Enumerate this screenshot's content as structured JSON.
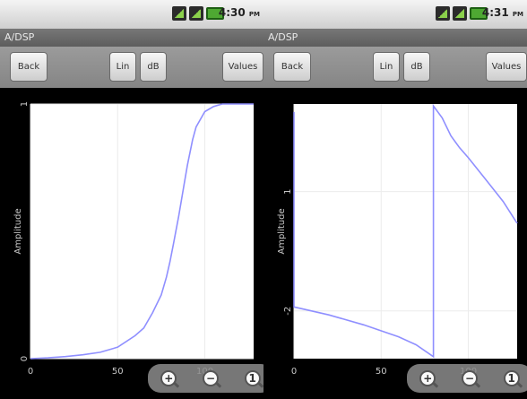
{
  "screens": [
    {
      "status": {
        "time": "4:30",
        "ampm": "PM"
      },
      "title": "A/DSP",
      "toolbar": {
        "back": "Back",
        "lin": "Lin",
        "db": "dB",
        "values": "Values"
      },
      "chart_data": {
        "type": "line",
        "ylabel": "Amplitude",
        "xlim": [
          0,
          128
        ],
        "ylim": [
          0,
          1
        ],
        "x_ticks": [
          "0",
          "50",
          "100"
        ],
        "y_ticks": [
          "0",
          "1"
        ],
        "grid": true,
        "series_color": "#8f8fff",
        "x": [
          0,
          10,
          20,
          30,
          40,
          50,
          60,
          65,
          70,
          75,
          78,
          80,
          82,
          85,
          88,
          90,
          93,
          95,
          100,
          105,
          110,
          115,
          128
        ],
        "values": [
          0.0,
          0.003,
          0.008,
          0.015,
          0.025,
          0.045,
          0.09,
          0.12,
          0.18,
          0.25,
          0.32,
          0.38,
          0.45,
          0.56,
          0.68,
          0.76,
          0.86,
          0.91,
          0.97,
          0.99,
          1.0,
          1.0,
          1.0
        ]
      },
      "zoom": {
        "in": "zoom-in-icon",
        "out": "zoom-out-icon",
        "reset": "zoom-reset-icon"
      }
    },
    {
      "status": {
        "time": "4:31",
        "ampm": "PM"
      },
      "title": "A/DSP",
      "toolbar": {
        "back": "Back",
        "lin": "Lin",
        "db": "dB",
        "values": "Values"
      },
      "chart_data": {
        "type": "line",
        "ylabel": "Amplitude",
        "xlim": [
          0,
          128
        ],
        "ylim": [
          -3.2,
          3.2
        ],
        "x_ticks": [
          "0",
          "50",
          "100"
        ],
        "y_ticks": [
          "1",
          "-2"
        ],
        "grid": true,
        "series_color": "#8f8fff",
        "x": [
          0,
          0,
          20,
          40,
          60,
          70,
          80,
          80,
          85,
          90,
          95,
          100,
          110,
          120,
          128
        ],
        "values": [
          3.0,
          -1.9,
          -2.1,
          -2.35,
          -2.65,
          -2.85,
          -3.15,
          3.15,
          2.85,
          2.4,
          2.1,
          1.85,
          1.3,
          0.75,
          0.2
        ]
      },
      "zoom": {
        "in": "zoom-in-icon",
        "out": "zoom-out-icon",
        "reset": "zoom-reset-icon"
      }
    }
  ]
}
